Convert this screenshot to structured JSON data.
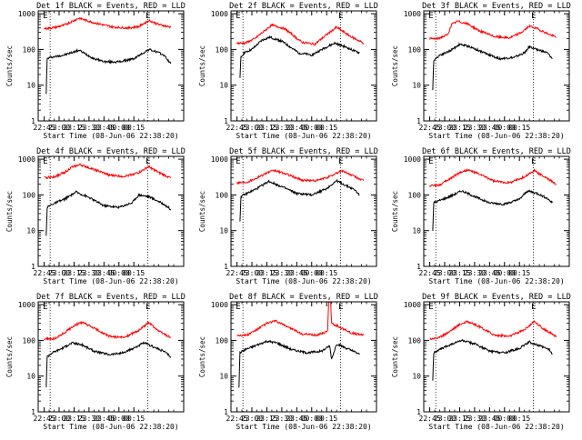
{
  "chart_data": [
    {
      "type": "line",
      "title": "Det 1f BLACK = Events, RED = LLD",
      "xlabel": "Start Time (08-Jun-06 22:38:20)",
      "ylabel": "Counts/sec",
      "x_tick_labels": [
        "22:45",
        "23:00",
        "23:15",
        "23:30",
        "23:45",
        "00:00",
        "00:15"
      ],
      "y_tick_labels": [
        "1",
        "10",
        "100",
        "1000"
      ],
      "y_scale": "log",
      "ylim": [
        1,
        1200
      ],
      "markers": [
        "E",
        "E"
      ],
      "series": [
        {
          "color": "#000000",
          "x_min": [
            2,
            3,
            6,
            20,
            35,
            50,
            62,
            75,
            90,
            105,
            113,
            120,
            127
          ],
          "values": [
            6,
            55,
            60,
            70,
            95,
            55,
            45,
            45,
            55,
            100,
            85,
            70,
            40
          ]
        },
        {
          "color": "#ff0000",
          "x_min": [
            0,
            10,
            20,
            25,
            35,
            50,
            70,
            85,
            95,
            105,
            115,
            127
          ],
          "values": [
            380,
            410,
            480,
            560,
            750,
            560,
            420,
            400,
            440,
            650,
            500,
            420
          ]
        }
      ]
    },
    {
      "type": "line",
      "title": "Det 2f BLACK = Events, RED = LLD",
      "xlabel": "Start Time (08-Jun-06 22:38:20)",
      "ylabel": "Counts/sec",
      "x_tick_labels": [
        "22:45",
        "23:00",
        "23:15",
        "23:30",
        "23:45",
        "00:00",
        "00:15"
      ],
      "y_tick_labels": [
        "1",
        "10",
        "100",
        "1000"
      ],
      "y_scale": "log",
      "ylim": [
        1,
        1200
      ],
      "markers": [
        "E",
        "E"
      ],
      "series": [
        {
          "color": "#000000",
          "x_min": [
            3,
            4,
            7,
            15,
            25,
            33,
            45,
            62,
            75,
            88,
            98,
            108,
            118,
            123
          ],
          "values": [
            15,
            60,
            80,
            100,
            180,
            220,
            170,
            80,
            70,
            110,
            150,
            120,
            90,
            80
          ]
        },
        {
          "color": "#ff0000",
          "x_min": [
            0,
            8,
            18,
            28,
            35,
            48,
            65,
            78,
            90,
            100,
            112,
            127
          ],
          "values": [
            150,
            150,
            200,
            340,
            480,
            380,
            160,
            140,
            260,
            420,
            250,
            150
          ]
        }
      ]
    },
    {
      "type": "line",
      "title": "Det 3f BLACK = Events, RED = LLD",
      "xlabel": "Start Time (08-Jun-06 22:38:20)",
      "ylabel": "Counts/sec",
      "x_tick_labels": [
        "22:45",
        "23:00",
        "23:15",
        "23:30",
        "23:45",
        "00:00",
        "00:15"
      ],
      "y_tick_labels": [
        "1",
        "10",
        "100",
        "1000"
      ],
      "y_scale": "log",
      "ylim": [
        1,
        1200
      ],
      "markers": [
        "E",
        "E"
      ],
      "series": [
        {
          "color": "#000000",
          "x_min": [
            3,
            4,
            10,
            20,
            30,
            40,
            55,
            70,
            85,
            95,
            100,
            108,
            118,
            123
          ],
          "values": [
            7,
            50,
            70,
            90,
            140,
            120,
            80,
            55,
            60,
            80,
            120,
            100,
            80,
            55
          ]
        },
        {
          "color": "#ff0000",
          "x_min": [
            0,
            8,
            18,
            22,
            28,
            38,
            50,
            65,
            80,
            92,
            100,
            108,
            118,
            127
          ],
          "values": [
            200,
            200,
            260,
            500,
            620,
            520,
            330,
            230,
            210,
            300,
            450,
            380,
            280,
            220
          ]
        }
      ]
    },
    {
      "type": "line",
      "title": "Det 4f BLACK = Events, RED = LLD",
      "xlabel": "Start Time (08-Jun-06 22:38:20)",
      "ylabel": "Counts/sec",
      "x_tick_labels": [
        "22:45",
        "23:00",
        "23:15",
        "23:30",
        "23:45",
        "00:00",
        "00:15"
      ],
      "y_tick_labels": [
        "1",
        "10",
        "100",
        "1000"
      ],
      "y_scale": "log",
      "ylim": [
        1,
        1200
      ],
      "markers": [
        "E",
        "E"
      ],
      "series": [
        {
          "color": "#000000",
          "x_min": [
            2,
            3,
            8,
            20,
            32,
            45,
            60,
            75,
            88,
            95,
            105,
            113,
            120,
            127
          ],
          "values": [
            7,
            45,
            55,
            75,
            120,
            85,
            50,
            45,
            60,
            100,
            90,
            70,
            55,
            40
          ]
        },
        {
          "color": "#ff0000",
          "x_min": [
            0,
            10,
            20,
            28,
            36,
            50,
            65,
            80,
            95,
            105,
            115,
            127
          ],
          "values": [
            300,
            320,
            420,
            600,
            700,
            520,
            360,
            330,
            420,
            620,
            420,
            300
          ]
        }
      ]
    },
    {
      "type": "line",
      "title": "Det 5f BLACK = Events, RED = LLD",
      "xlabel": "Start Time (08-Jun-06 22:38:20)",
      "ylabel": "Counts/sec",
      "x_tick_labels": [
        "22:45",
        "23:00",
        "23:15",
        "23:30",
        "23:45",
        "00:00",
        "00:15"
      ],
      "y_tick_labels": [
        "1",
        "10",
        "100",
        "1000"
      ],
      "y_scale": "log",
      "ylim": [
        1,
        1200
      ],
      "markers": [
        "E",
        "E"
      ],
      "series": [
        {
          "color": "#000000",
          "x_min": [
            3,
            4,
            10,
            20,
            32,
            45,
            60,
            75,
            90,
            100,
            108,
            118,
            123
          ],
          "values": [
            18,
            90,
            110,
            150,
            240,
            170,
            110,
            100,
            150,
            250,
            190,
            140,
            100
          ]
        },
        {
          "color": "#ff0000",
          "x_min": [
            0,
            10,
            20,
            30,
            38,
            50,
            65,
            80,
            95,
            105,
            115,
            127
          ],
          "values": [
            220,
            230,
            300,
            420,
            480,
            380,
            260,
            250,
            340,
            480,
            360,
            250
          ]
        }
      ]
    },
    {
      "type": "line",
      "title": "Det 6f BLACK = Events, RED = LLD",
      "xlabel": "Start Time (08-Jun-06 22:38:20)",
      "ylabel": "Counts/sec",
      "x_tick_labels": [
        "22:45",
        "23:00",
        "23:15",
        "23:30",
        "23:45",
        "00:00",
        "00:15"
      ],
      "y_tick_labels": [
        "1",
        "10",
        "100",
        "1000"
      ],
      "y_scale": "log",
      "ylim": [
        1,
        1200
      ],
      "markers": [
        "E",
        "E"
      ],
      "series": [
        {
          "color": "#000000",
          "x_min": [
            3,
            4,
            10,
            22,
            32,
            45,
            60,
            75,
            90,
            98,
            108,
            118,
            123
          ],
          "values": [
            10,
            60,
            70,
            95,
            130,
            90,
            60,
            55,
            75,
            130,
            110,
            80,
            60
          ]
        },
        {
          "color": "#ff0000",
          "x_min": [
            0,
            10,
            20,
            30,
            38,
            50,
            65,
            80,
            95,
            105,
            115,
            127
          ],
          "values": [
            180,
            190,
            280,
            420,
            500,
            380,
            240,
            220,
            320,
            480,
            320,
            200
          ]
        }
      ]
    },
    {
      "type": "line",
      "title": "Det 7f BLACK = Events, RED = LLD",
      "xlabel": "Start Time (08-Jun-06 22:38:20)",
      "ylabel": "Counts/sec",
      "x_tick_labels": [
        "22:45",
        "23:00",
        "23:15",
        "23:30",
        "23:45",
        "00:00",
        "00:15"
      ],
      "y_tick_labels": [
        "1",
        "10",
        "100",
        "1000"
      ],
      "y_scale": "log",
      "ylim": [
        1,
        1200
      ],
      "markers": [
        "E",
        "E"
      ],
      "series": [
        {
          "color": "#000000",
          "x_min": [
            2,
            3,
            8,
            18,
            28,
            38,
            50,
            65,
            80,
            92,
            100,
            110,
            120,
            127
          ],
          "values": [
            5,
            35,
            45,
            60,
            85,
            75,
            50,
            40,
            45,
            65,
            85,
            65,
            50,
            35
          ]
        },
        {
          "color": "#ff0000",
          "x_min": [
            0,
            10,
            20,
            30,
            38,
            50,
            65,
            80,
            95,
            105,
            115,
            127
          ],
          "values": [
            110,
            110,
            160,
            260,
            320,
            220,
            130,
            120,
            190,
            320,
            180,
            120
          ]
        }
      ]
    },
    {
      "type": "line",
      "title": "Det 8f BLACK = Events, RED = LLD",
      "xlabel": "Start Time (08-Jun-06 22:38:20)",
      "ylabel": "Counts/sec",
      "x_tick_labels": [
        "22:45",
        "23:00",
        "23:15",
        "23:30",
        "23:45",
        "00:00",
        "00:15"
      ],
      "y_tick_labels": [
        "1",
        "10",
        "100",
        "1000"
      ],
      "y_scale": "log",
      "ylim": [
        1,
        1200
      ],
      "markers": [
        "E",
        "E"
      ],
      "series": [
        {
          "color": "#000000",
          "x_min": [
            2,
            3,
            8,
            18,
            30,
            40,
            55,
            70,
            85,
            93,
            95,
            100,
            110,
            120,
            123
          ],
          "values": [
            5,
            45,
            55,
            70,
            95,
            85,
            55,
            45,
            50,
            70,
            30,
            80,
            60,
            45,
            40
          ]
        },
        {
          "color": "#ff0000",
          "x_min": [
            0,
            10,
            20,
            30,
            38,
            50,
            65,
            80,
            91,
            92,
            94,
            95,
            105,
            115,
            127
          ],
          "values": [
            140,
            140,
            200,
            300,
            350,
            250,
            150,
            140,
            180,
            1200,
            1200,
            300,
            220,
            160,
            140
          ]
        }
      ]
    },
    {
      "type": "line",
      "title": "Det 9f BLACK = Events, RED = LLD",
      "xlabel": "Start Time (08-Jun-06 22:38:20)",
      "ylabel": "Counts/sec",
      "x_tick_labels": [
        "22:45",
        "23:00",
        "23:15",
        "23:30",
        "23:45",
        "00:00",
        "00:15"
      ],
      "y_tick_labels": [
        "1",
        "10",
        "100",
        "1000"
      ],
      "y_scale": "log",
      "ylim": [
        1,
        1200
      ],
      "markers": [
        "E",
        "E"
      ],
      "series": [
        {
          "color": "#000000",
          "x_min": [
            3,
            4,
            10,
            20,
            32,
            45,
            60,
            75,
            90,
            100,
            110,
            120,
            123
          ],
          "values": [
            8,
            45,
            55,
            75,
            100,
            80,
            50,
            45,
            60,
            90,
            70,
            55,
            40
          ]
        },
        {
          "color": "#ff0000",
          "x_min": [
            0,
            10,
            20,
            30,
            38,
            50,
            65,
            80,
            95,
            105,
            115,
            127
          ],
          "values": [
            110,
            120,
            180,
            280,
            340,
            240,
            140,
            130,
            200,
            340,
            200,
            130
          ]
        }
      ]
    }
  ]
}
